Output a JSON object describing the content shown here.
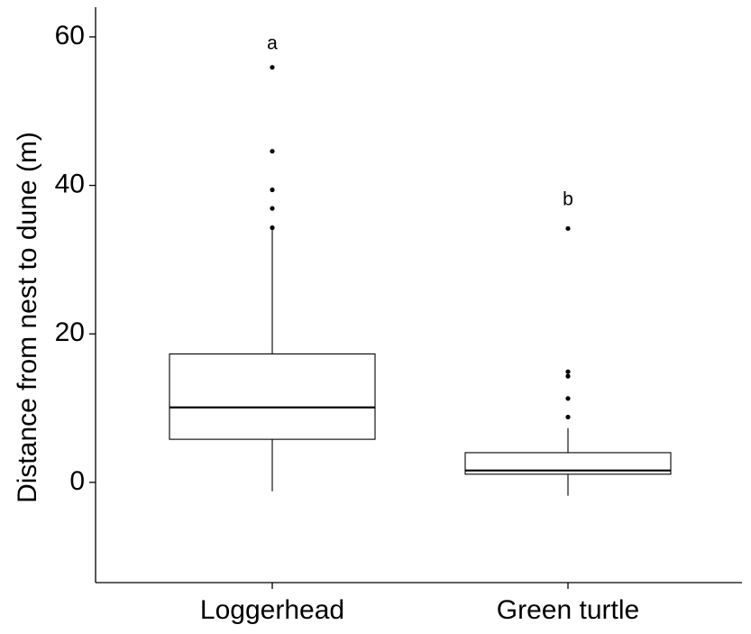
{
  "chart_data": {
    "type": "box",
    "title": "",
    "xlabel": "",
    "ylabel": "Distance from nest to dune (m)",
    "ylim": [
      -13.5,
      64
    ],
    "yticks": [
      0,
      20,
      40,
      60
    ],
    "grid": false,
    "categories": [
      "Loggerhead",
      "Green turtle"
    ],
    "boxes": [
      {
        "category": "Loggerhead",
        "whisker_low": -1.2,
        "q1": 5.8,
        "median": 10.1,
        "q3": 17.3,
        "whisker_high": 34.3,
        "outliers": [
          34.3,
          36.9,
          39.4,
          44.6,
          55.9
        ],
        "significance_label": "a",
        "label_y": 59
      },
      {
        "category": "Green turtle",
        "whisker_low": -1.8,
        "q1": 1.1,
        "median": 1.6,
        "q3": 4.0,
        "whisker_high": 7.3,
        "outliers": [
          8.8,
          11.3,
          14.3,
          14.9,
          34.2
        ],
        "significance_label": "b",
        "label_y": 38
      }
    ]
  }
}
